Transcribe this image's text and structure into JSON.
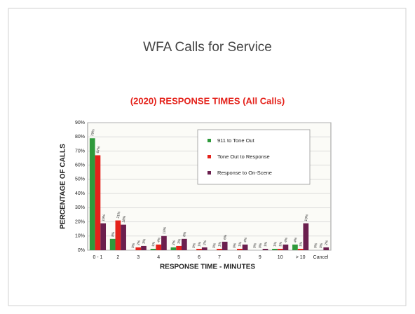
{
  "slide_title": "WFA Calls for Service",
  "chart_data": {
    "type": "bar",
    "title": "(2020) RESPONSE TIMES  (All Calls)",
    "x_label": "RESPONSE TIME - MINUTES",
    "y_label": "PERCENTAGE OF CALLS",
    "categories": [
      "0 - 1",
      "2",
      "3",
      "4",
      "5",
      "6",
      "7",
      "8",
      "9",
      "10",
      "> 10",
      "Cancel"
    ],
    "series": [
      {
        "name": "911 to Tone Out",
        "color": "#2f9a3c",
        "values": [
          79,
          8,
          0,
          1,
          2,
          0,
          0,
          0,
          0,
          1,
          4,
          0
        ],
        "value_labels": [
          "79%",
          "8%",
          "0%",
          "1%",
          "2%",
          "0%",
          "0%",
          "0%",
          "0%",
          "1%",
          "4%",
          "0%"
        ]
      },
      {
        "name": "Tone Out to Response",
        "color": "#e4221b",
        "values": [
          67,
          21,
          2,
          4,
          3,
          1,
          1,
          1,
          0,
          1,
          1,
          0
        ],
        "value_labels": [
          "67%",
          "21%",
          "2%",
          "4%",
          "3%",
          "1%",
          "1%",
          "1%",
          "0%",
          "1%",
          "1%",
          "0%"
        ]
      },
      {
        "name": "Response to On-Scene",
        "color": "#6b1f4e",
        "values": [
          19,
          18,
          3,
          10,
          8,
          2,
          6,
          4,
          1,
          4,
          19,
          2
        ],
        "value_labels": [
          "19%",
          "18%",
          "3%",
          "10%",
          "8%",
          "2%",
          "6%",
          "4%",
          "1%",
          "4%",
          "19%",
          "2%"
        ]
      }
    ],
    "ylim": [
      0,
      90
    ],
    "yticks": [
      {
        "value": 0,
        "label": "0%"
      },
      {
        "value": 10,
        "label": "10%"
      },
      {
        "value": 20,
        "label": "20%"
      },
      {
        "value": 30,
        "label": "30%"
      },
      {
        "value": 40,
        "label": "40%"
      },
      {
        "value": 50,
        "label": "50%"
      },
      {
        "value": 60,
        "label": "60%"
      },
      {
        "value": 70,
        "label": "70%"
      },
      {
        "value": 80,
        "label": "80%"
      },
      {
        "value": 90,
        "label": "90%"
      }
    ],
    "grid": true,
    "legend": "upper right"
  }
}
